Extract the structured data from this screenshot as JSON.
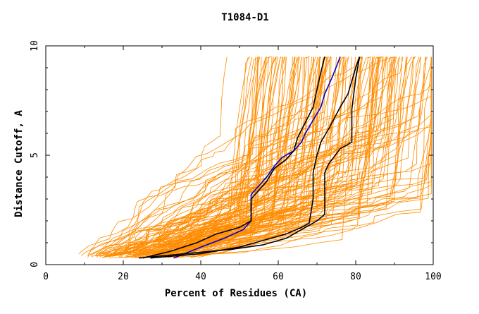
{
  "chart_data": {
    "type": "line",
    "title": "T1084-D1",
    "xlabel": "Percent of Residues (CA)",
    "ylabel": "Distance Cutoff, A",
    "xlim": [
      0,
      100
    ],
    "ylim": [
      0,
      10
    ],
    "x_ticks": [
      "0",
      "20",
      "40",
      "60",
      "80",
      "100"
    ],
    "y_ticks": [
      "0",
      "5",
      "10"
    ],
    "colors": {
      "background_series": "#ff8c00",
      "highlight_blue": "#0000cc",
      "highlight_black": "#000000",
      "axes": "#000000"
    },
    "background_series_count": 150,
    "series": [
      {
        "name": "highlight-blue",
        "color": "#0000cc",
        "x": [
          33,
          40,
          46,
          51,
          53,
          53,
          55,
          57,
          59,
          61,
          64,
          66,
          67,
          69,
          71,
          72,
          74,
          76
        ],
        "y": [
          0.3,
          0.8,
          1.2,
          1.6,
          2.0,
          3.2,
          3.6,
          4.0,
          4.5,
          4.9,
          5.2,
          5.6,
          6.0,
          6.6,
          7.2,
          7.8,
          8.6,
          9.5
        ]
      },
      {
        "name": "highlight-black-1",
        "color": "#000000",
        "x": [
          25,
          32,
          39,
          44,
          50,
          53,
          53,
          55,
          57,
          59,
          62,
          64,
          65,
          67,
          69,
          70,
          71,
          72
        ],
        "y": [
          0.3,
          0.6,
          1.0,
          1.4,
          1.7,
          2.0,
          3.0,
          3.4,
          3.8,
          4.4,
          4.8,
          5.2,
          5.8,
          6.5,
          7.2,
          8.0,
          8.8,
          9.5
        ]
      },
      {
        "name": "highlight-black-2",
        "color": "#000000",
        "x": [
          27,
          40,
          50,
          56,
          62,
          66,
          68,
          69,
          69,
          70,
          71,
          73,
          76,
          78,
          79,
          80,
          81
        ],
        "y": [
          0.3,
          0.5,
          0.8,
          1.1,
          1.4,
          1.7,
          1.9,
          3.0,
          4.2,
          5.0,
          5.6,
          6.2,
          7.2,
          7.8,
          8.4,
          9.0,
          9.5
        ]
      },
      {
        "name": "highlight-black-3",
        "color": "#000000",
        "x": [
          24,
          36,
          48,
          56,
          62,
          66,
          70,
          72,
          72,
          72,
          73,
          76,
          79,
          79,
          80,
          81
        ],
        "y": [
          0.3,
          0.5,
          0.7,
          0.9,
          1.2,
          1.6,
          2.0,
          2.3,
          3.6,
          4.2,
          4.6,
          5.3,
          5.6,
          7.1,
          8.5,
          9.5
        ]
      }
    ]
  }
}
